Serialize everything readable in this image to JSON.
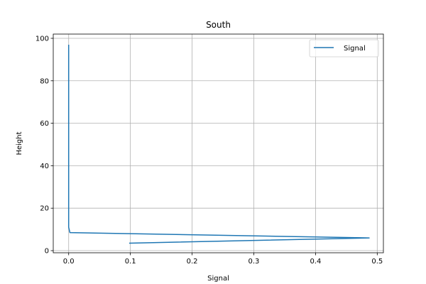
{
  "chart_data": {
    "type": "line",
    "title": "South",
    "xlabel": "Signal",
    "ylabel": "Height",
    "xlim": [
      -0.025,
      0.51
    ],
    "ylim": [
      -1.0,
      102.0
    ],
    "x_ticks": [
      0.0,
      0.1,
      0.2,
      0.3,
      0.4,
      0.5
    ],
    "x_tick_labels": [
      "0.0",
      "0.1",
      "0.2",
      "0.3",
      "0.4",
      "0.5"
    ],
    "y_ticks": [
      0,
      20,
      40,
      60,
      80,
      100
    ],
    "y_tick_labels": [
      "0",
      "20",
      "40",
      "60",
      "80",
      "100"
    ],
    "grid": true,
    "legend_position": "upper-right",
    "series": [
      {
        "name": "Signal",
        "color": "#1f77b4",
        "x": [
          0.098,
          0.487,
          0.002,
          0.0,
          0.0
        ],
        "y": [
          3.5,
          6.0,
          8.5,
          11.0,
          97.0
        ]
      }
    ]
  }
}
